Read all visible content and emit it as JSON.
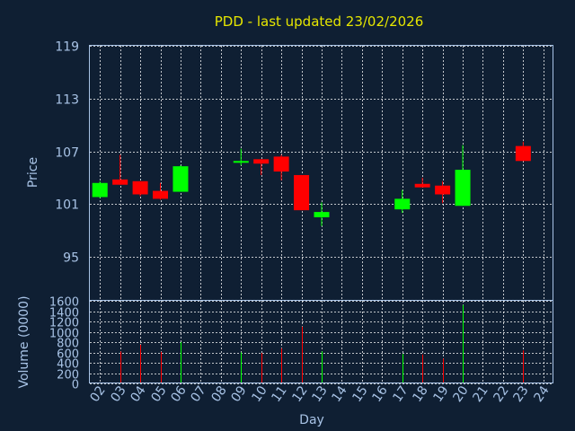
{
  "chart_data": [
    {
      "type": "candlestick",
      "title": "PDD - last updated 23/02/2026",
      "ylabel": "Price",
      "ylim": [
        90,
        119
      ],
      "yticks": [
        95,
        101,
        107,
        113,
        119
      ],
      "grid": true,
      "up_color": "#00ff00",
      "down_color": "#ff0000",
      "candles": [
        {
          "day": "02",
          "open": 101.8,
          "close": 103.4,
          "high": 103.6,
          "low": 101.7
        },
        {
          "day": "03",
          "open": 103.8,
          "close": 103.2,
          "high": 106.6,
          "low": 103.2
        },
        {
          "day": "04",
          "open": 103.6,
          "close": 102.1,
          "high": 103.6,
          "low": 101.9
        },
        {
          "day": "05",
          "open": 102.5,
          "close": 101.6,
          "high": 103.4,
          "low": 101.5
        },
        {
          "day": "06",
          "open": 102.4,
          "close": 105.3,
          "high": 105.4,
          "low": 102.4
        },
        {
          "day": "09",
          "open": 105.7,
          "close": 105.9,
          "high": 107.3,
          "low": 105.4
        },
        {
          "day": "10",
          "open": 106.1,
          "close": 105.6,
          "high": 106.1,
          "low": 104.3
        },
        {
          "day": "11",
          "open": 106.4,
          "close": 104.7,
          "high": 106.6,
          "low": 103.7
        },
        {
          "day": "12",
          "open": 104.3,
          "close": 100.3,
          "high": 104.3,
          "low": 100.3
        },
        {
          "day": "13",
          "open": 99.5,
          "close": 100.1,
          "high": 101.2,
          "low": 98.5
        },
        {
          "day": "17",
          "open": 100.4,
          "close": 101.6,
          "high": 102.6,
          "low": 100.0
        },
        {
          "day": "18",
          "open": 103.3,
          "close": 102.9,
          "high": 104.0,
          "low": 102.9
        },
        {
          "day": "19",
          "open": 103.1,
          "close": 102.1,
          "high": 103.6,
          "low": 101.1
        },
        {
          "day": "20",
          "open": 100.8,
          "close": 104.9,
          "high": 107.7,
          "low": 100.8
        },
        {
          "day": "23",
          "open": 107.6,
          "close": 105.9,
          "high": 108.1,
          "low": 105.9
        }
      ]
    },
    {
      "type": "bar",
      "ylabel": "Volume (0000)",
      "xlabel": "Day",
      "ylim": [
        0,
        1600
      ],
      "yticks": [
        0,
        200,
        400,
        600,
        800,
        1000,
        1200,
        1400,
        1600
      ],
      "grid": true,
      "categories": [
        "02",
        "03",
        "04",
        "05",
        "06",
        "07",
        "08",
        "09",
        "10",
        "11",
        "12",
        "13",
        "14",
        "15",
        "16",
        "17",
        "18",
        "19",
        "20",
        "21",
        "22",
        "23",
        "24"
      ],
      "volumes": [
        {
          "day": "02",
          "value": 0,
          "direction": "up"
        },
        {
          "day": "03",
          "value": 620,
          "direction": "down"
        },
        {
          "day": "04",
          "value": 750,
          "direction": "down"
        },
        {
          "day": "05",
          "value": 610,
          "direction": "down"
        },
        {
          "day": "06",
          "value": 800,
          "direction": "up"
        },
        {
          "day": "09",
          "value": 600,
          "direction": "up"
        },
        {
          "day": "10",
          "value": 590,
          "direction": "down"
        },
        {
          "day": "11",
          "value": 680,
          "direction": "down"
        },
        {
          "day": "12",
          "value": 1100,
          "direction": "down"
        },
        {
          "day": "13",
          "value": 620,
          "direction": "up"
        },
        {
          "day": "17",
          "value": 570,
          "direction": "up"
        },
        {
          "day": "18",
          "value": 560,
          "direction": "down"
        },
        {
          "day": "19",
          "value": 480,
          "direction": "down"
        },
        {
          "day": "20",
          "value": 1520,
          "direction": "up"
        },
        {
          "day": "23",
          "value": 640,
          "direction": "down"
        }
      ]
    }
  ]
}
